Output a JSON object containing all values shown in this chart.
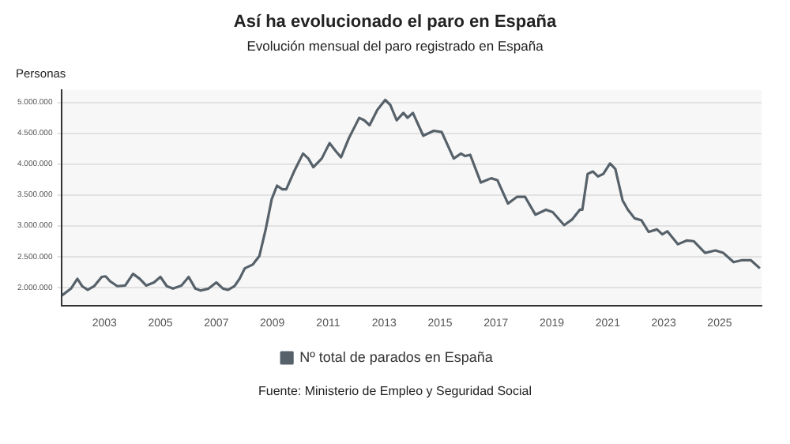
{
  "chart_data": {
    "type": "line",
    "title": "Así ha evolucionado el paro en España",
    "subtitle": "Evolución mensual del paro registrado en España",
    "ylabel": "Personas",
    "x": [
      2001.48,
      2001.8,
      2002.03,
      2002.2,
      2002.4,
      2002.63,
      2002.9,
      2003.04,
      2003.2,
      2003.46,
      2003.74,
      2004.02,
      2004.26,
      2004.49,
      2004.77,
      2005.0,
      2005.23,
      2005.45,
      2005.75,
      2006.01,
      2006.25,
      2006.44,
      2006.72,
      2007.0,
      2007.24,
      2007.42,
      2007.65,
      2007.83,
      2008.02,
      2008.3,
      2008.54,
      2008.76,
      2008.98,
      2009.17,
      2009.36,
      2009.5,
      2009.78,
      2010.1,
      2010.29,
      2010.47,
      2010.77,
      2011.05,
      2011.27,
      2011.46,
      2011.74,
      2012.11,
      2012.29,
      2012.48,
      2012.76,
      2013.04,
      2013.22,
      2013.45,
      2013.69,
      2013.84,
      2014.03,
      2014.4,
      2014.78,
      2015.06,
      2015.49,
      2015.75,
      2015.9,
      2016.08,
      2016.46,
      2016.83,
      2017.05,
      2017.43,
      2017.76,
      2018.04,
      2018.41,
      2018.79,
      2019.03,
      2019.44,
      2019.72,
      2020.0,
      2020.09,
      2020.28,
      2020.47,
      2020.65,
      2020.84,
      2021.08,
      2021.27,
      2021.53,
      2021.72,
      2021.96,
      2022.2,
      2022.46,
      2022.76,
      2022.95,
      2023.13,
      2023.51,
      2023.82,
      2024.07,
      2024.48,
      2024.85,
      2025.13,
      2025.5,
      2025.78,
      2026.12,
      2026.44
    ],
    "series": [
      {
        "name": "Nº total de parados en España",
        "color": "#56616a",
        "values": [
          1870000,
          1980000,
          2140000,
          2020000,
          1960000,
          2020000,
          2170000,
          2180000,
          2100000,
          2020000,
          2030000,
          2220000,
          2140000,
          2030000,
          2080000,
          2170000,
          2020000,
          1980000,
          2030000,
          2170000,
          1980000,
          1950000,
          1980000,
          2080000,
          1980000,
          1960000,
          2020000,
          2140000,
          2310000,
          2370000,
          2510000,
          2930000,
          3430000,
          3650000,
          3590000,
          3590000,
          3880000,
          4170000,
          4090000,
          3950000,
          4090000,
          4340000,
          4210000,
          4110000,
          4420000,
          4750000,
          4710000,
          4630000,
          4880000,
          5040000,
          4960000,
          4710000,
          4830000,
          4750000,
          4830000,
          4460000,
          4540000,
          4520000,
          4090000,
          4170000,
          4130000,
          4150000,
          3700000,
          3770000,
          3740000,
          3360000,
          3470000,
          3470000,
          3180000,
          3260000,
          3220000,
          3010000,
          3100000,
          3260000,
          3260000,
          3840000,
          3880000,
          3800000,
          3840000,
          4010000,
          3920000,
          3410000,
          3260000,
          3120000,
          3090000,
          2900000,
          2940000,
          2860000,
          2910000,
          2700000,
          2760000,
          2750000,
          2560000,
          2600000,
          2560000,
          2410000,
          2440000,
          2440000,
          2310000
        ]
      }
    ],
    "xlim": [
      2001.48,
      2026.5
    ],
    "xticks": [
      2003,
      2005,
      2007,
      2009,
      2011,
      2013,
      2015,
      2017,
      2019,
      2021,
      2023,
      2025
    ],
    "ylim": [
      1700000,
      5200000
    ],
    "yticks": [
      {
        "value": 2000000,
        "label": "2.000.000"
      },
      {
        "value": 2500000,
        "label": "2.500.000"
      },
      {
        "value": 3000000,
        "label": "3.000.000"
      },
      {
        "value": 3500000,
        "label": "3.500.000"
      },
      {
        "value": 4000000,
        "label": "4.000.000"
      },
      {
        "value": 4500000,
        "label": "4.500.000"
      },
      {
        "value": 5000000,
        "label": "5.000.000"
      }
    ],
    "grid": "y",
    "legend": "bottom",
    "marker": "none",
    "line_style": "solid",
    "annotations": [
      "Fuente: Ministerio de Empleo y Seguridad Social"
    ]
  }
}
